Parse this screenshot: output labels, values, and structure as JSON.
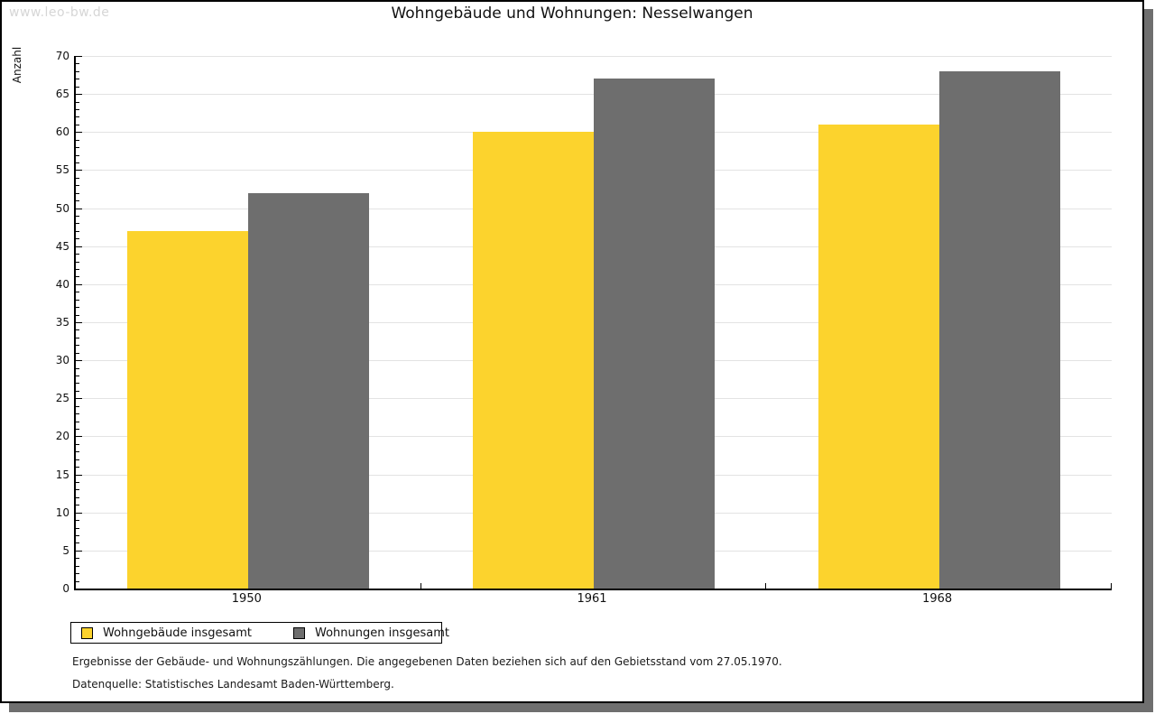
{
  "watermark": "www.leo-bw.de",
  "chart_data": {
    "type": "bar",
    "title": "Wohngebäude und Wohnungen: Nesselwangen",
    "xlabel": "",
    "ylabel": "Anzahl",
    "categories": [
      "1950",
      "1961",
      "1968"
    ],
    "series": [
      {
        "name": "Wohngebäude insgesamt",
        "color": "#fcd32d",
        "values": [
          47,
          60,
          61
        ]
      },
      {
        "name": "Wohnungen insgesamt",
        "color": "#6e6e6e",
        "values": [
          52,
          67,
          68
        ]
      }
    ],
    "ylim": [
      0,
      70
    ],
    "y_major_step": 5,
    "y_minor_step": 1,
    "grid": true,
    "legend_position": "bottom-left"
  },
  "footnotes": [
    "Ergebnisse der Gebäude- und Wohnungszählungen. Die angegebenen Daten beziehen sich auf den Gebietsstand vom 27.05.1970.",
    "Datenquelle: Statistisches Landesamt Baden-Württemberg."
  ],
  "colors": {
    "bar_yellow": "#fcd32d",
    "bar_gray": "#6e6e6e",
    "gridline": "#e3e3e3",
    "axis": "#000000",
    "shadow": "#6f6f6f",
    "watermark": "#d6d6d6",
    "text": "#111111"
  }
}
